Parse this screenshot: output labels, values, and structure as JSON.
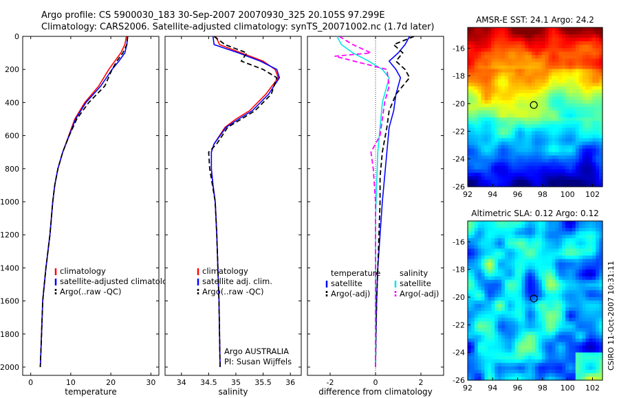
{
  "header": {
    "line1": "Argo profile: CS 5900030_183 30-Sep-2007 20070930_325 20.105S 97.299E",
    "line2": "Climatology: CARS2006. Satellite-adjusted climatology: synTS_20071002.nc (1.7d later)"
  },
  "footer_note": "CSIRO 11-Oct-2007 10:31:11",
  "colors": {
    "climatology": "#ff0000",
    "satellite": "#0000ff",
    "argo": "#000000",
    "salinity_satellite": "#00e5e5",
    "salinity_argo": "#ff00ff"
  },
  "chart_data": [
    {
      "type": "line",
      "name": "temperature-panel",
      "xlabel": "temperature",
      "ylabel": "",
      "xlim": [
        -2,
        32
      ],
      "ylim": [
        0,
        2050
      ],
      "y_reversed": true,
      "xticks": [
        0,
        10,
        20,
        30
      ],
      "yticks": [
        0,
        200,
        400,
        600,
        800,
        1000,
        1200,
        1400,
        1600,
        1800,
        2000
      ],
      "legend": [
        "climatology",
        "satellite-adjusted climatology",
        "Argo(..raw -QC)"
      ],
      "legend_placement": "lower-right",
      "series": [
        {
          "name": "climatology",
          "color_key": "climatology",
          "dash": false,
          "x": [
            23.9,
            23.5,
            22.5,
            21.0,
            19.5,
            17.0,
            13.5,
            11.0,
            9.5,
            8.0,
            6.8,
            6.0,
            5.5,
            4.8,
            4.3,
            3.8,
            3.4,
            3.0,
            2.7,
            2.4
          ],
          "y": [
            0,
            50,
            100,
            150,
            200,
            300,
            400,
            500,
            600,
            700,
            800,
            900,
            1000,
            1200,
            1300,
            1400,
            1500,
            1600,
            1800,
            2000
          ]
        },
        {
          "name": "satellite-adjusted climatology",
          "color_key": "satellite",
          "dash": false,
          "x": [
            24.2,
            24.0,
            23.5,
            22.0,
            20.3,
            17.5,
            13.8,
            11.2,
            9.6,
            8.0,
            6.8,
            6.0,
            5.5,
            4.8,
            4.3,
            3.8,
            3.4,
            3.0,
            2.7,
            2.4
          ],
          "y": [
            0,
            50,
            100,
            150,
            200,
            300,
            400,
            500,
            600,
            700,
            800,
            900,
            1000,
            1200,
            1300,
            1400,
            1500,
            1600,
            1800,
            2000
          ]
        },
        {
          "name": "Argo(..raw -QC)",
          "color_key": "argo",
          "dash": true,
          "x": [
            24.2,
            24.0,
            23.0,
            21.5,
            20.3,
            18.5,
            14.5,
            11.5,
            9.6,
            8.0,
            6.8,
            6.0,
            5.5,
            4.8,
            4.3,
            3.8,
            3.4,
            3.0,
            2.7,
            2.4
          ],
          "y": [
            0,
            50,
            100,
            150,
            200,
            300,
            400,
            500,
            600,
            700,
            800,
            900,
            1000,
            1200,
            1300,
            1400,
            1500,
            1600,
            1800,
            2000
          ]
        }
      ]
    },
    {
      "type": "line",
      "name": "salinity-panel",
      "xlabel": "salinity",
      "ylabel": "",
      "xlim": [
        33.7,
        36.2
      ],
      "ylim": [
        0,
        2050
      ],
      "y_reversed": true,
      "xticks": [
        34,
        34.5,
        35,
        35.5,
        36
      ],
      "legend": [
        "climatology",
        "satellite adj. clim.",
        "Argo(..raw -QC)"
      ],
      "legend_placement": "lower-right",
      "annotation_lines": [
        "Argo AUSTRALIA",
        "PI: Susan Wijffels"
      ],
      "series": [
        {
          "name": "climatology",
          "color_key": "climatology",
          "dash": false,
          "x": [
            34.63,
            34.7,
            35.1,
            35.5,
            35.72,
            35.78,
            35.55,
            35.25,
            35.0,
            34.8,
            34.6,
            34.55,
            34.55,
            34.58,
            34.62,
            34.65,
            34.67,
            34.69,
            34.7,
            34.71
          ],
          "y": [
            0,
            50,
            100,
            150,
            200,
            250,
            350,
            450,
            500,
            550,
            650,
            700,
            800,
            900,
            1000,
            1200,
            1400,
            1600,
            1800,
            2000
          ]
        },
        {
          "name": "satellite adj. clim.",
          "color_key": "satellite",
          "dash": false,
          "x": [
            34.58,
            34.6,
            35.05,
            35.45,
            35.75,
            35.8,
            35.6,
            35.3,
            35.05,
            34.82,
            34.6,
            34.55,
            34.55,
            34.58,
            34.62,
            34.65,
            34.67,
            34.69,
            34.7,
            34.71
          ],
          "y": [
            0,
            50,
            100,
            150,
            200,
            250,
            350,
            450,
            500,
            550,
            650,
            700,
            800,
            900,
            1000,
            1200,
            1400,
            1600,
            1800,
            2000
          ]
        },
        {
          "name": "Argo(..raw -QC)",
          "color_key": "argo",
          "dash": true,
          "x": [
            34.6,
            34.8,
            35.2,
            35.1,
            35.5,
            35.75,
            35.65,
            35.35,
            35.1,
            34.85,
            34.65,
            34.5,
            34.52,
            34.57,
            34.62,
            34.65,
            34.67,
            34.69,
            34.7,
            34.71
          ],
          "y": [
            0,
            50,
            100,
            150,
            200,
            250,
            350,
            450,
            500,
            550,
            650,
            700,
            800,
            900,
            1000,
            1200,
            1400,
            1600,
            1800,
            2000
          ]
        }
      ]
    },
    {
      "type": "line",
      "name": "difference-panel",
      "xlabel": "difference from climatology",
      "ylabel": "",
      "xlim": [
        -3,
        3
      ],
      "ylim": [
        0,
        2050
      ],
      "y_reversed": true,
      "xticks": [
        -2,
        0,
        2
      ],
      "legend_groups": [
        {
          "heading": "temperature",
          "items": [
            "satellite",
            "Argo(-adj)"
          ]
        },
        {
          "heading": "salinity",
          "items": [
            "satellite",
            "Argo(-adj)"
          ]
        }
      ],
      "series": [
        {
          "name": "temperature satellite",
          "color_key": "satellite",
          "dash": false,
          "x": [
            1.5,
            1.3,
            1.0,
            0.6,
            0.9,
            1.1,
            1.0,
            0.9,
            0.8,
            0.6,
            0.5,
            0.4,
            0.3,
            0.2,
            0.1,
            0.05,
            0.02,
            0.0
          ],
          "y": [
            0,
            50,
            100,
            150,
            200,
            250,
            300,
            350,
            450,
            550,
            700,
            850,
            1000,
            1200,
            1400,
            1600,
            1800,
            2000
          ]
        },
        {
          "name": "temperature Argo(-adj)",
          "color_key": "argo",
          "dash": true,
          "x": [
            1.7,
            0.8,
            1.2,
            0.9,
            1.3,
            1.5,
            1.2,
            0.9,
            0.6,
            0.5,
            0.3,
            0.2,
            0.2,
            0.15,
            0.1,
            0.05,
            0.02,
            0.0
          ],
          "y": [
            0,
            50,
            100,
            150,
            200,
            250,
            300,
            350,
            450,
            550,
            700,
            850,
            1000,
            1200,
            1400,
            1600,
            1800,
            2000
          ]
        },
        {
          "name": "salinity satellite",
          "color_key": "salinity_satellite",
          "dash": false,
          "x": [
            -1.7,
            -1.5,
            -1.0,
            -0.3,
            0.3,
            0.6,
            0.5,
            0.3,
            0.2,
            0.1,
            0.05,
            0.0,
            0.0,
            0.0,
            0.0,
            0.0,
            0.0
          ],
          "y": [
            0,
            50,
            100,
            150,
            200,
            250,
            300,
            400,
            550,
            700,
            900,
            1100,
            1300,
            1500,
            1700,
            1900,
            2000
          ]
        },
        {
          "name": "salinity Argo(-adj)",
          "color_key": "salinity_argo",
          "dash": true,
          "x": [
            -1.6,
            -1.0,
            -0.2,
            -1.8,
            0.5,
            0.6,
            0.4,
            0.3,
            0.2,
            -0.2,
            -0.1,
            0.0,
            0.0,
            0.0,
            0.0,
            0.0,
            0.0
          ],
          "y": [
            0,
            50,
            100,
            120,
            200,
            300,
            400,
            500,
            600,
            700,
            800,
            1000,
            1200,
            1400,
            1600,
            1800,
            2000
          ]
        }
      ]
    },
    {
      "type": "heatmap",
      "name": "sst-map",
      "title": "AMSR-E SST: 24.1 Argo: 24.2",
      "xlim": [
        92,
        102.8
      ],
      "ylim": [
        -26,
        -14.5
      ],
      "xticks": [
        92,
        94,
        96,
        98,
        100,
        102
      ],
      "yticks": [
        -16,
        -18,
        -20,
        -22,
        -24,
        -26
      ],
      "marker": {
        "x": 97.3,
        "y": -20.1
      }
    },
    {
      "type": "heatmap",
      "name": "sla-map",
      "title": "Altimetric SLA: 0.12 Argo: 0.12",
      "xlim": [
        92,
        102.8
      ],
      "ylim": [
        -26,
        -14.5
      ],
      "xticks": [
        92,
        94,
        96,
        98,
        100,
        102
      ],
      "yticks": [
        -16,
        -18,
        -20,
        -22,
        -24,
        -26
      ],
      "marker": {
        "x": 97.3,
        "y": -20.1
      }
    }
  ]
}
